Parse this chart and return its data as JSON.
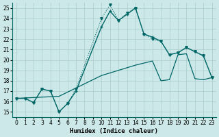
{
  "xlabel": "Humidex (Indice chaleur)",
  "ylabel": "",
  "background_color": "#cce8e8",
  "line_color": "#006666",
  "xlim": [
    -0.5,
    23.5
  ],
  "ylim": [
    14.5,
    25.5
  ],
  "xticks": [
    0,
    1,
    2,
    3,
    4,
    5,
    6,
    7,
    8,
    9,
    10,
    11,
    12,
    13,
    14,
    15,
    16,
    17,
    18,
    19,
    20,
    21,
    22,
    23
  ],
  "yticks": [
    15,
    16,
    17,
    18,
    19,
    20,
    21,
    22,
    23,
    24,
    25
  ],
  "line1_x": [
    0,
    1,
    2,
    3,
    4,
    5,
    6,
    7,
    10,
    11,
    12,
    13,
    14,
    15,
    16,
    17,
    18,
    19,
    20,
    21,
    22,
    23
  ],
  "line1_y": [
    16.3,
    16.3,
    15.9,
    17.2,
    17.0,
    15.0,
    15.8,
    17.2,
    24.0,
    25.3,
    23.8,
    24.5,
    25.0,
    22.5,
    22.0,
    21.8,
    20.5,
    20.7,
    21.2,
    20.8,
    20.4,
    18.3
  ],
  "line2_x": [
    0,
    1,
    2,
    3,
    4,
    5,
    6,
    7,
    10,
    11,
    12,
    13,
    14,
    15,
    16,
    17,
    18,
    19,
    20,
    21,
    22,
    23
  ],
  "line2_y": [
    16.3,
    16.3,
    15.9,
    17.2,
    17.0,
    15.0,
    15.8,
    17.0,
    23.2,
    24.7,
    23.8,
    24.4,
    25.0,
    22.5,
    22.2,
    21.8,
    20.5,
    20.7,
    21.2,
    20.8,
    20.4,
    18.3
  ],
  "line3_x": [
    0,
    5,
    10,
    14,
    15,
    16,
    17,
    18,
    19,
    20,
    21,
    22,
    23
  ],
  "line3_y": [
    16.3,
    16.5,
    18.5,
    19.5,
    19.7,
    19.9,
    18.0,
    18.1,
    20.5,
    20.6,
    18.2,
    18.1,
    18.3
  ],
  "line1_lw": 0.8,
  "line2_lw": 1.0,
  "line3_lw": 0.9
}
